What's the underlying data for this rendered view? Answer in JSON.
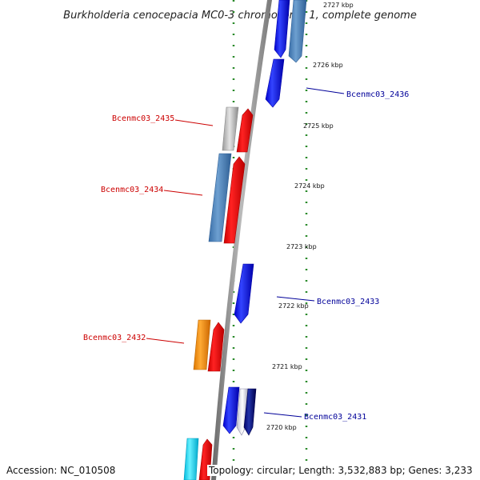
{
  "title": "Burkholderia cenocepacia MC0-3 chromosome 1, complete genome",
  "footer": {
    "accession": "Accession: NC_010508",
    "summary": "Topology: circular; Length: 3,532,883 bp; Genes: 3,233"
  },
  "scale_labels": [
    "2727 kbp",
    "2726 kbp",
    "2725 kbp",
    "2724 kbp",
    "2723 kbp",
    "2722 kbp",
    "2721 kbp",
    "2720 kbp"
  ],
  "gene_labels": {
    "left": [
      "Bcenmc03_2435",
      "Bcenmc03_2434",
      "Bcenmc03_2432"
    ],
    "right": [
      "Bcenmc03_2436",
      "Bcenmc03_2433",
      "Bcenmc03_2431"
    ]
  },
  "colors": {
    "left_label": "#cc0000",
    "right_label": "#000099",
    "tick": "#2a8a2a",
    "backbone": "#888888",
    "forward_gene": "#0000ee",
    "reverse_gene": "#ee0000"
  }
}
